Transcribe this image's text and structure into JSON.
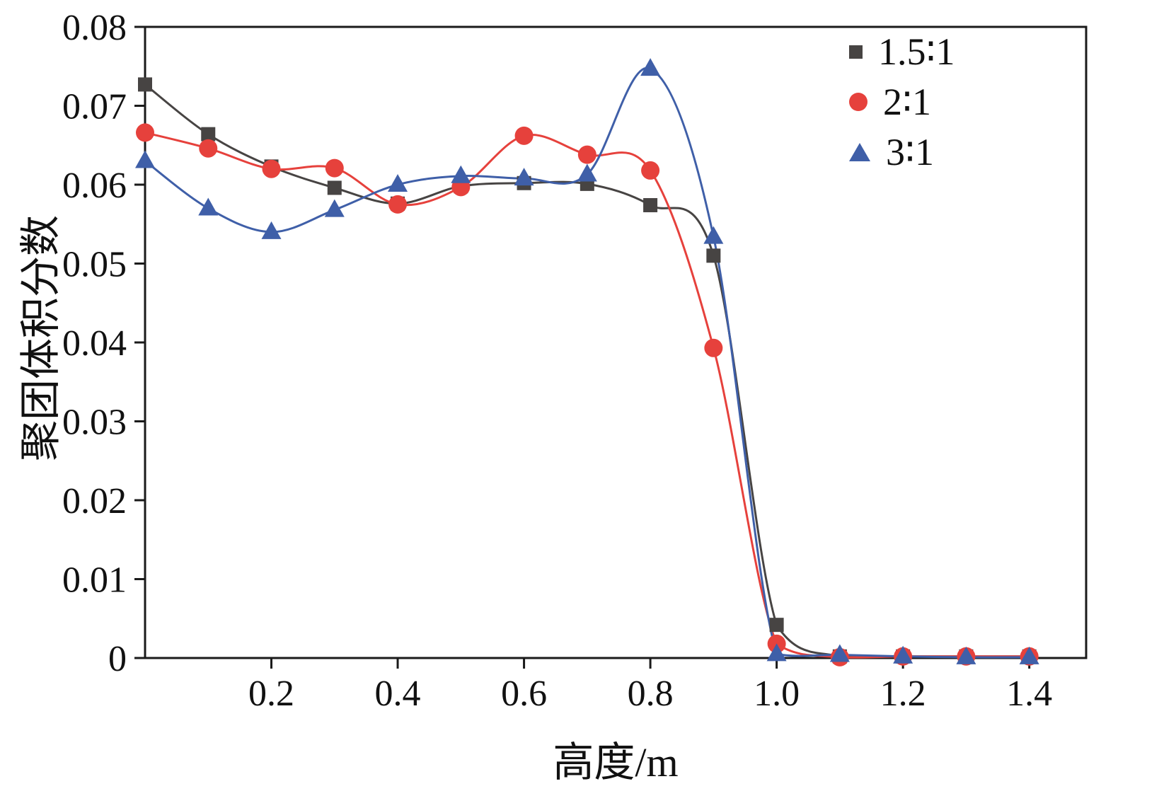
{
  "chart_data": {
    "type": "line",
    "title": "",
    "xlabel": "高度/m",
    "ylabel": "聚团体积分数",
    "xlim": [
      0,
      1.49
    ],
    "ylim": [
      0,
      0.08
    ],
    "grid": false,
    "legend_position": "top-right",
    "frame_color": "#1a1a1a",
    "x_ticks": [
      0.2,
      0.4,
      0.6,
      0.8,
      1.0,
      1.2,
      1.4
    ],
    "x_tick_labels": [
      "0.2",
      "0.4",
      "0.6",
      "0.8",
      "1.0",
      "1.2",
      "1.4"
    ],
    "y_ticks": [
      0,
      0.01,
      0.02,
      0.03,
      0.04,
      0.05,
      0.06,
      0.07,
      0.08
    ],
    "y_tick_labels": [
      "0",
      "0.01",
      "0.02",
      "0.03",
      "0.04",
      "0.05",
      "0.06",
      "0.07",
      "0.08"
    ],
    "x": [
      0,
      0.1,
      0.2,
      0.3,
      0.4,
      0.5,
      0.6,
      0.7,
      0.8,
      0.9,
      1.0,
      1.1,
      1.2,
      1.3,
      1.4
    ],
    "series": [
      {
        "name": "1.5∶1",
        "marker": "square",
        "color": "#474443",
        "line_width": 3,
        "values": [
          0.0727,
          0.0664,
          0.0623,
          0.0596,
          0.0576,
          0.0598,
          0.0602,
          0.0601,
          0.0574,
          0.051,
          0.0042,
          0.0002,
          0.0002,
          0.0002,
          0.0002
        ]
      },
      {
        "name": "2∶1",
        "marker": "circle",
        "color": "#e6413c",
        "line_width": 3,
        "values": [
          0.0666,
          0.0646,
          0.062,
          0.0621,
          0.0575,
          0.0597,
          0.0662,
          0.0638,
          0.0618,
          0.0393,
          0.0018,
          0.0001,
          0.0002,
          0.0002,
          0.0002
        ]
      },
      {
        "name": "3∶1",
        "marker": "triangle",
        "color": "#3f5fa8",
        "line_width": 3,
        "values": [
          0.063,
          0.057,
          0.054,
          0.0568,
          0.06,
          0.0611,
          0.0608,
          0.0613,
          0.0747,
          0.0534,
          0.0005,
          0.0004,
          0.0002,
          0.0001,
          0.0001
        ]
      }
    ]
  }
}
